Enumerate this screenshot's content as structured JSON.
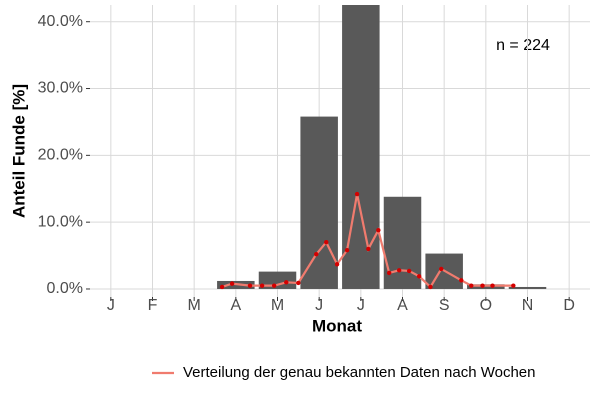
{
  "chart_data": {
    "type": "bar",
    "x_label": "Monat",
    "y_label": "Anteil Funde [%]",
    "annotation": "n = 224",
    "categories": [
      "J",
      "F",
      "M",
      "A",
      "M",
      "J",
      "J",
      "A",
      "S",
      "O",
      "N",
      "D"
    ],
    "values": [
      0,
      0,
      0,
      1.2,
      2.6,
      25.8,
      42.6,
      13.8,
      5.3,
      0.7,
      0.3,
      0
    ],
    "color": "#595959",
    "ylim": [
      -1.2,
      42.5
    ],
    "yticks": [
      {
        "value": 0,
        "label": "0.0%"
      },
      {
        "value": 10,
        "label": "10.0%"
      },
      {
        "value": 20,
        "label": "20.0%"
      },
      {
        "value": 30,
        "label": "30.0%"
      },
      {
        "value": 40,
        "label": "40.0%"
      }
    ],
    "xlim": [
      0.5,
      12.5
    ],
    "grid": true,
    "legend": "bottom",
    "series": [
      {
        "name": "Verteilung der genau bekannten Daten nach Wochen",
        "color": "#f07b6e",
        "point_color": "#d40000",
        "x": [
          3.67,
          3.91,
          4.34,
          4.63,
          4.92,
          5.21,
          5.5,
          5.93,
          6.17,
          6.43,
          6.67,
          6.91,
          7.18,
          7.42,
          7.68,
          7.92,
          8.16,
          8.4,
          8.67,
          8.93,
          9.41,
          9.65,
          9.92,
          10.16,
          10.66
        ],
        "values": [
          0.3,
          0.8,
          0.5,
          0.5,
          0.5,
          1.0,
          0.9,
          5.2,
          7.0,
          3.7,
          5.8,
          14.2,
          6.0,
          8.8,
          2.4,
          2.8,
          2.7,
          1.9,
          0.3,
          3.0,
          1.3,
          0.5,
          0.5,
          0.5,
          0.5
        ]
      }
    ]
  }
}
